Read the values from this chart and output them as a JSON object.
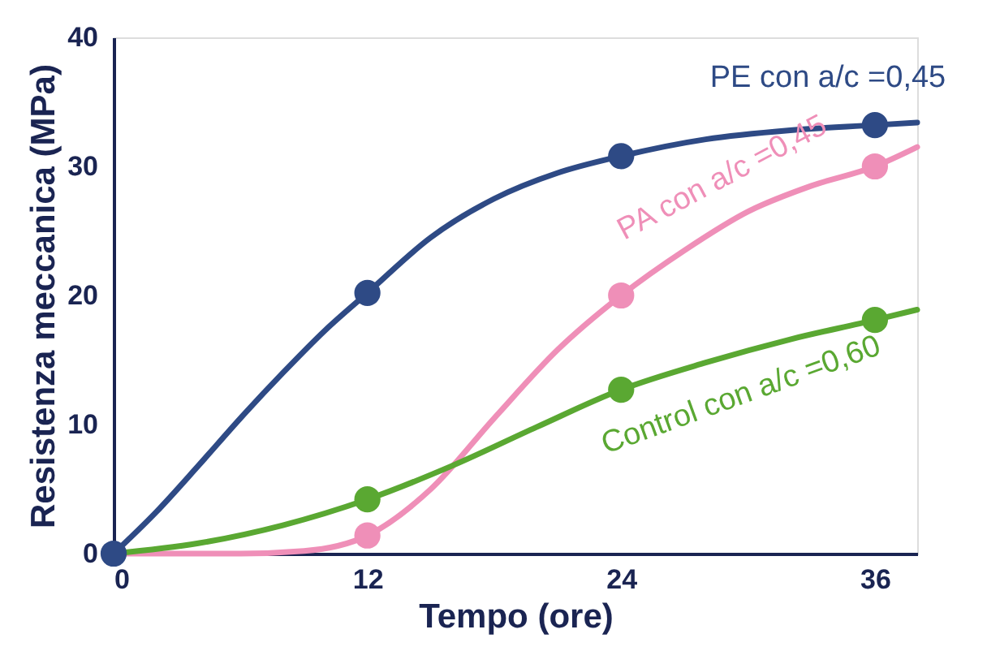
{
  "chart_data": {
    "type": "line",
    "xlabel": "Tempo (ore)",
    "ylabel": "Resistenza meccanica (MPa)",
    "xlim": [
      0,
      38
    ],
    "ylim": [
      0,
      40
    ],
    "xticks": [
      0,
      12,
      24,
      36
    ],
    "yticks": [
      0,
      10,
      20,
      30,
      40
    ],
    "grid": false,
    "line_style": "solid",
    "marker": "none",
    "series": [
      {
        "name": "PE con a/c =0,45",
        "color": "#2e4a85",
        "x": [
          0,
          2,
          4,
          6,
          8,
          10,
          12,
          15,
          18,
          21,
          24,
          28,
          32,
          36,
          38
        ],
        "values": [
          0,
          3.2,
          6.8,
          10.5,
          14,
          17.3,
          20.2,
          24.5,
          27.5,
          29.5,
          30.8,
          32.1,
          32.8,
          33.2,
          33.4
        ]
      },
      {
        "name": "PA con a/c =0,45",
        "color": "#ef8fb8",
        "x": [
          0,
          6,
          9,
          12,
          15,
          18,
          21,
          24,
          27,
          30,
          33,
          36,
          38
        ],
        "values": [
          0,
          0,
          0.2,
          1.4,
          5,
          10.5,
          15.8,
          20,
          23.5,
          26.5,
          28.5,
          30,
          31.5
        ]
      },
      {
        "name": "Control con a/c =0,60",
        "color": "#5aa832",
        "x": [
          0,
          4,
          8,
          12,
          16,
          20,
          24,
          28,
          32,
          36,
          38
        ],
        "values": [
          0,
          0.8,
          2.2,
          4.2,
          6.8,
          9.8,
          12.7,
          14.8,
          16.6,
          18.1,
          18.9
        ]
      },
      {
        "color": "#2e4a85",
        "type": "scatter",
        "marker": "circle",
        "x": [
          0,
          12,
          24,
          36
        ],
        "values": [
          0,
          20.2,
          30.8,
          33.2
        ]
      },
      {
        "color": "#ef8fb8",
        "type": "scatter",
        "marker": "circle",
        "x": [
          12,
          24,
          36
        ],
        "values": [
          1.4,
          20,
          30
        ]
      },
      {
        "color": "#5aa832",
        "type": "scatter",
        "marker": "circle",
        "x": [
          12,
          24,
          36
        ],
        "values": [
          4.2,
          12.7,
          18.1
        ]
      }
    ]
  }
}
